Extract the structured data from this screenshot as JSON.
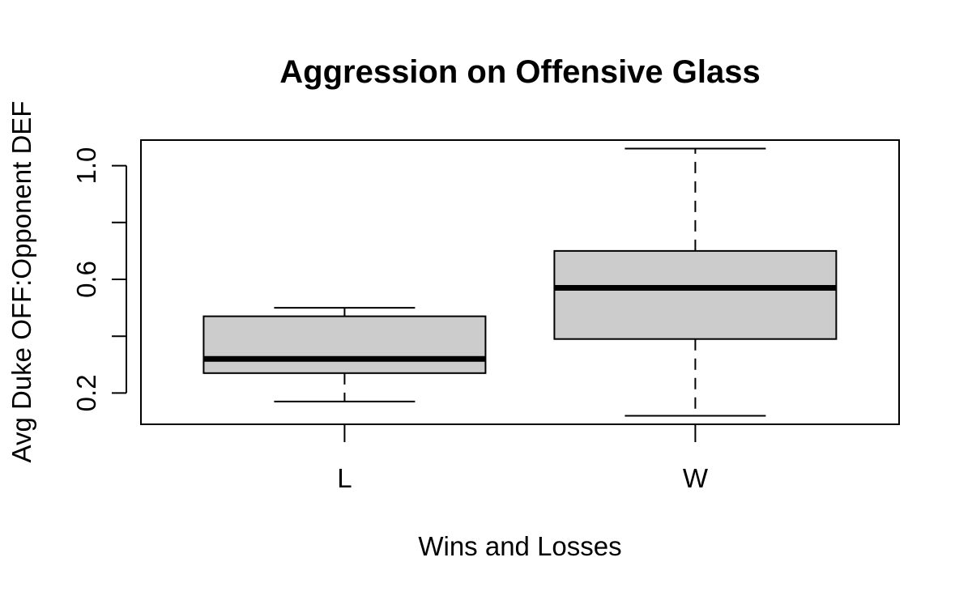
{
  "chart_data": {
    "type": "boxplot",
    "title": "Aggression on Offensive Glass",
    "xlabel": "Wins and Losses",
    "ylabel": "Avg Duke OFF:Opponent DEF",
    "categories": [
      "L",
      "W"
    ],
    "boxes": [
      {
        "category": "L",
        "whisker_low": 0.17,
        "q1": 0.27,
        "median": 0.32,
        "q3": 0.47,
        "whisker_high": 0.5
      },
      {
        "category": "W",
        "whisker_low": 0.12,
        "q1": 0.39,
        "median": 0.57,
        "q3": 0.7,
        "whisker_high": 1.06
      }
    ],
    "ylim": [
      0.09,
      1.09
    ],
    "y_ticks": [
      0.2,
      0.4,
      0.6,
      0.8,
      1.0
    ],
    "y_tick_labels": [
      "0.2",
      "",
      "0.6",
      "",
      "1.0"
    ],
    "box_fill": "#cccccc",
    "line_color": "#000000",
    "grid": false
  }
}
